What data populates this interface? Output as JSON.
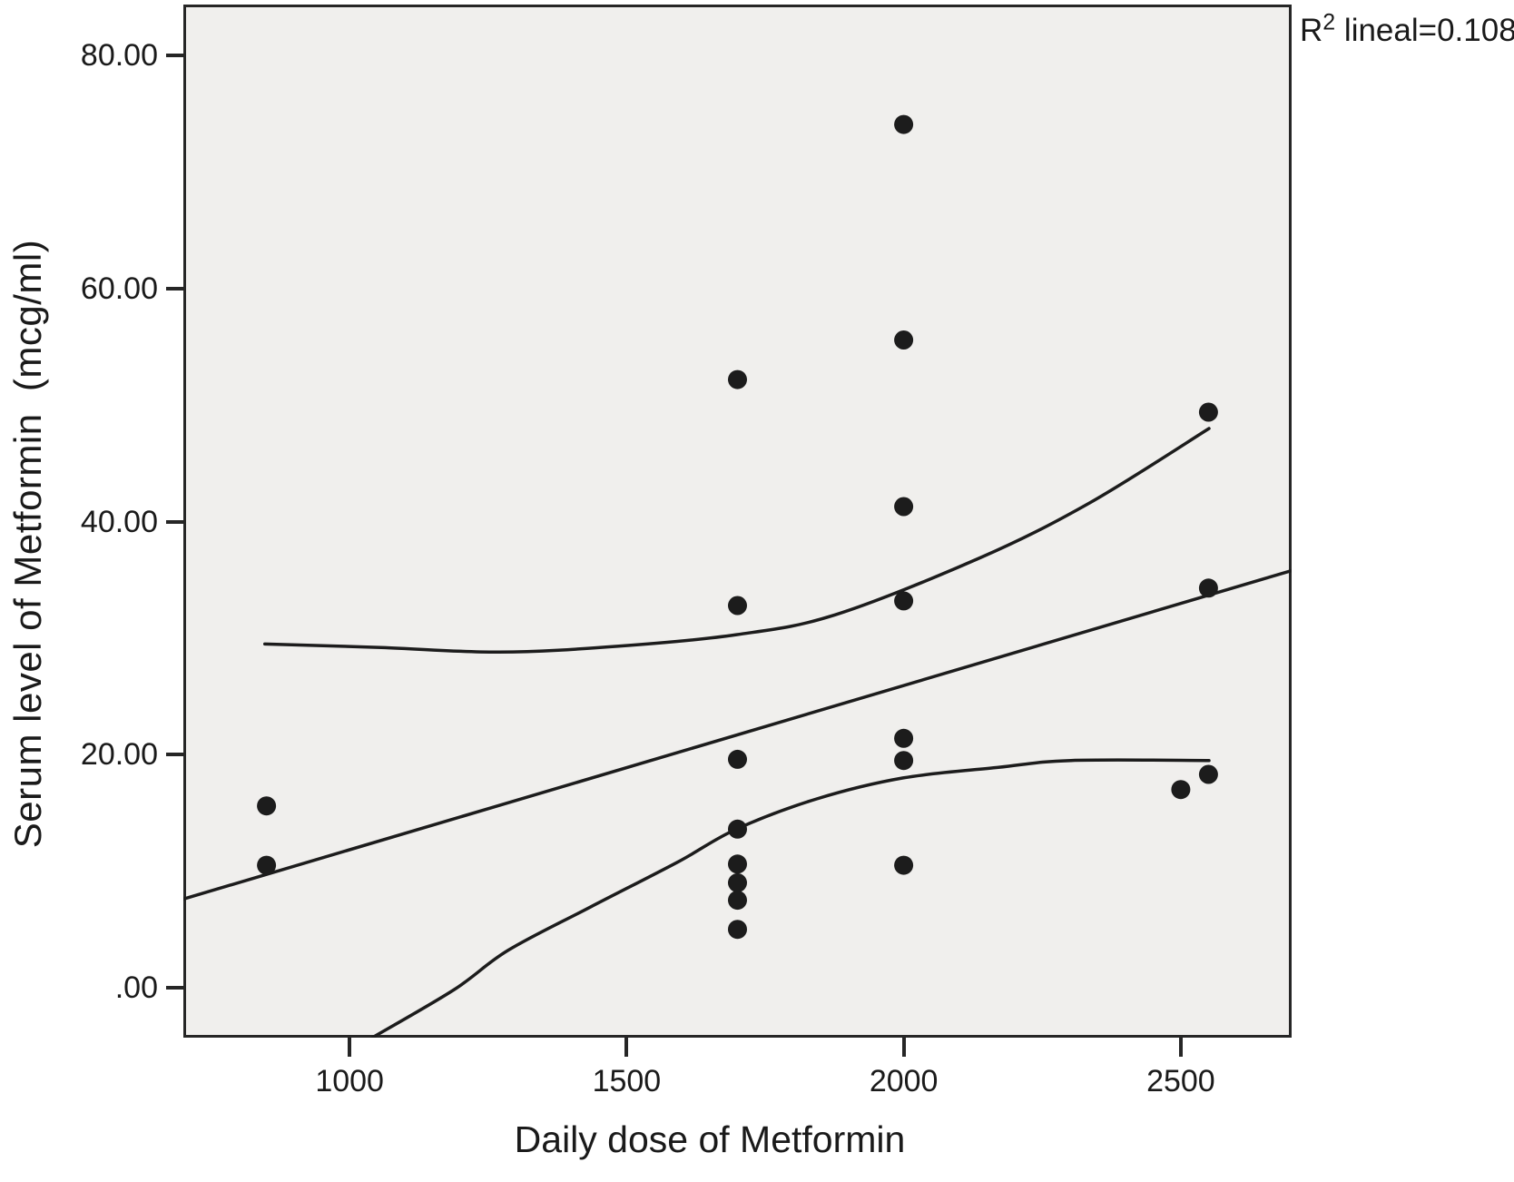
{
  "annotation": {
    "r2_base": "R",
    "r2_exponent": "2",
    "r2_text": " lineal=0.108"
  },
  "axes": {
    "x_title": "Daily dose of Metformin",
    "y_title": "Serum level of Metformin  (mcg/ml)"
  },
  "chart_data": {
    "type": "scatter",
    "title": "",
    "xlabel": "Daily dose of Metformin",
    "ylabel": "Serum level of Metformin  (mcg/ml)",
    "annotation": "R2 lineal=0.108",
    "grid": false,
    "xlim": [
      700,
      2700
    ],
    "ylim": [
      -4.3,
      84.4
    ],
    "x_ticks": {
      "values": [
        1000,
        1500,
        2000,
        2500
      ],
      "labels": [
        "1000",
        "1500",
        "2000",
        "2500"
      ]
    },
    "y_ticks": {
      "values": [
        0,
        20,
        40,
        60,
        80
      ],
      "labels": [
        ".00",
        "20.00",
        "40.00",
        "60.00",
        "80.00"
      ]
    },
    "points": [
      [
        850,
        15.6
      ],
      [
        850,
        10.5
      ],
      [
        1700,
        52.2
      ],
      [
        1700,
        32.8
      ],
      [
        1700,
        19.6
      ],
      [
        1700,
        13.6
      ],
      [
        1700,
        10.6
      ],
      [
        1700,
        9.0
      ],
      [
        1700,
        7.5
      ],
      [
        1700,
        5.0
      ],
      [
        2000,
        74.1
      ],
      [
        2000,
        55.6
      ],
      [
        2000,
        41.3
      ],
      [
        2000,
        33.2
      ],
      [
        2000,
        21.4
      ],
      [
        2000,
        19.5
      ],
      [
        2000,
        10.5
      ],
      [
        2500,
        17.0
      ],
      [
        2550,
        49.4
      ],
      [
        2550,
        34.3
      ],
      [
        2550,
        18.3
      ]
    ],
    "fit_line": [
      [
        700,
        7.6
      ],
      [
        2700,
        35.8
      ]
    ],
    "ci_upper": [
      [
        847,
        29.5
      ],
      [
        1057,
        29.2
      ],
      [
        1270,
        28.8
      ],
      [
        1483,
        29.3
      ],
      [
        1698,
        30.3
      ],
      [
        1876,
        32.0
      ],
      [
        2138,
        36.9
      ],
      [
        2335,
        41.6
      ],
      [
        2551,
        48.0
      ]
    ],
    "ci_lower": [
      [
        1041,
        -4.3
      ],
      [
        1188,
        -0.2
      ],
      [
        1286,
        3.2
      ],
      [
        1434,
        6.9
      ],
      [
        1593,
        10.8
      ],
      [
        1698,
        13.6
      ],
      [
        1843,
        16.2
      ],
      [
        1999,
        18.0
      ],
      [
        2171,
        18.9
      ],
      [
        2302,
        19.5
      ],
      [
        2551,
        19.5
      ]
    ],
    "point_radius_px": 10.5,
    "point_color": "#1c1c1c",
    "line_color": "#1c1c1c",
    "plot_bg": "#f0efed"
  }
}
